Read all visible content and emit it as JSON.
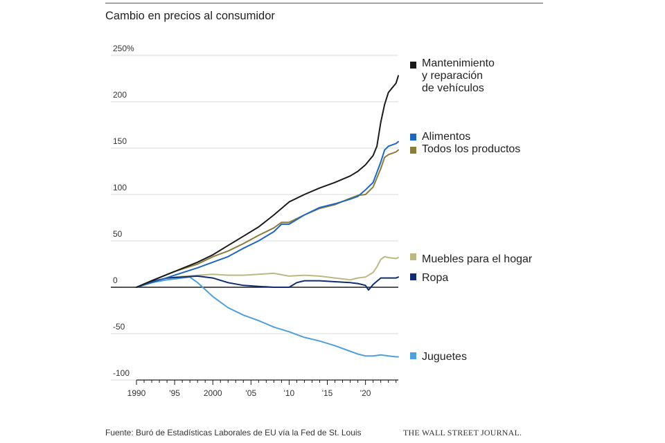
{
  "chart_data": {
    "type": "line",
    "title": "Cambio en precios al consumidor",
    "ylim": [
      -100,
      250
    ],
    "xlim": [
      1990,
      2024.3
    ],
    "y_ticks": [
      {
        "value": 250,
        "label": "250%"
      },
      {
        "value": 200,
        "label": "200"
      },
      {
        "value": 150,
        "label": "150"
      },
      {
        "value": 100,
        "label": "100"
      },
      {
        "value": 50,
        "label": "50"
      },
      {
        "value": 0,
        "label": "0"
      },
      {
        "value": -50,
        "label": "-50"
      },
      {
        "value": -100,
        "label": "-100"
      }
    ],
    "x_ticks": [
      {
        "value": 1990,
        "label": "1990"
      },
      {
        "value": 1995,
        "label": "'95"
      },
      {
        "value": 2000,
        "label": "2000"
      },
      {
        "value": 2005,
        "label": "'05"
      },
      {
        "value": 2010,
        "label": "'10"
      },
      {
        "value": 2015,
        "label": "'15"
      },
      {
        "value": 2020,
        "label": "'20"
      }
    ],
    "grid": "horizontal",
    "legend": "right",
    "series": [
      {
        "name": "Mantenimiento\ny reparación\nde vehículos",
        "color": "#1a1a1a",
        "x": [
          1990,
          1992,
          1995,
          1998,
          2000,
          2002,
          2004,
          2006,
          2008,
          2010,
          2012,
          2014,
          2016,
          2018,
          2019,
          2020,
          2020.5,
          2021,
          2021.5,
          2022,
          2022.5,
          2023,
          2023.5,
          2024,
          2024.3
        ],
        "y": [
          0,
          7,
          17,
          27,
          35,
          45,
          55,
          65,
          78,
          92,
          100,
          107,
          113,
          120,
          125,
          132,
          137,
          142,
          152,
          178,
          197,
          210,
          215,
          220,
          228
        ]
      },
      {
        "name": "Alimentos",
        "color": "#1f66c1",
        "x": [
          1990,
          1992,
          1995,
          1998,
          2000,
          2002,
          2004,
          2006,
          2008,
          2009,
          2010,
          2012,
          2014,
          2016,
          2018,
          2019,
          2020,
          2021,
          2022,
          2022.5,
          2023,
          2024,
          2024.3
        ],
        "y": [
          0,
          5,
          13,
          21,
          27,
          33,
          42,
          50,
          60,
          68,
          68,
          78,
          86,
          90,
          95,
          98,
          105,
          113,
          135,
          148,
          152,
          155,
          157
        ]
      },
      {
        "name": "Todos los productos",
        "color": "#8a7d3a",
        "x": [
          1990,
          1992,
          1995,
          1998,
          2000,
          2002,
          2004,
          2006,
          2008,
          2009,
          2010,
          2012,
          2014,
          2016,
          2018,
          2019,
          2020,
          2021,
          2022,
          2022.5,
          2023,
          2024,
          2024.3
        ],
        "y": [
          0,
          7,
          17,
          25,
          33,
          39,
          47,
          56,
          64,
          70,
          70,
          78,
          85,
          89,
          96,
          99,
          100,
          108,
          128,
          140,
          143,
          146,
          148
        ]
      },
      {
        "name": "Muebles para el hogar",
        "color": "#bdb784",
        "x": [
          1990,
          1992,
          1995,
          1998,
          2000,
          2002,
          2004,
          2006,
          2008,
          2010,
          2012,
          2014,
          2016,
          2018,
          2019,
          2020,
          2021,
          2021.5,
          2022,
          2022.5,
          2023,
          2024,
          2024.3
        ],
        "y": [
          0,
          7,
          11,
          13,
          14,
          13,
          13,
          14,
          15,
          12,
          13,
          12,
          10,
          8,
          10,
          11,
          16,
          22,
          30,
          33,
          32,
          31,
          32
        ]
      },
      {
        "name": "Ropa",
        "color": "#0e2c6e",
        "x": [
          1990,
          1992,
          1994,
          1996,
          1998,
          2000,
          2002,
          2004,
          2006,
          2008,
          2010,
          2011,
          2012,
          2014,
          2016,
          2018,
          2019,
          2020,
          2020.4,
          2021,
          2022,
          2023,
          2024,
          2024.3
        ],
        "y": [
          0,
          6,
          10,
          11,
          12,
          10,
          5,
          2,
          1,
          0,
          0,
          5,
          7,
          7,
          6,
          5,
          4,
          2,
          -3,
          3,
          10,
          10,
          10,
          11
        ]
      },
      {
        "name": "Juguetes",
        "color": "#4f9fdc",
        "x": [
          1990,
          1992,
          1994,
          1996,
          1997,
          1998,
          2000,
          2002,
          2004,
          2006,
          2008,
          2010,
          2012,
          2014,
          2016,
          2018,
          2019,
          2020,
          2021,
          2022,
          2023,
          2024,
          2024.3
        ],
        "y": [
          0,
          5,
          8,
          10,
          11,
          5,
          -10,
          -22,
          -30,
          -36,
          -43,
          -48,
          -54,
          -58,
          -63,
          -69,
          -72,
          -74,
          -74,
          -73,
          -74,
          -75,
          -75
        ]
      }
    ]
  },
  "footer": {
    "source": "Fuente: Buró de Estadísticas Laborales de EU vía la Fed de St. Louis",
    "brand": "THE WALL STREET JOURNAL."
  }
}
